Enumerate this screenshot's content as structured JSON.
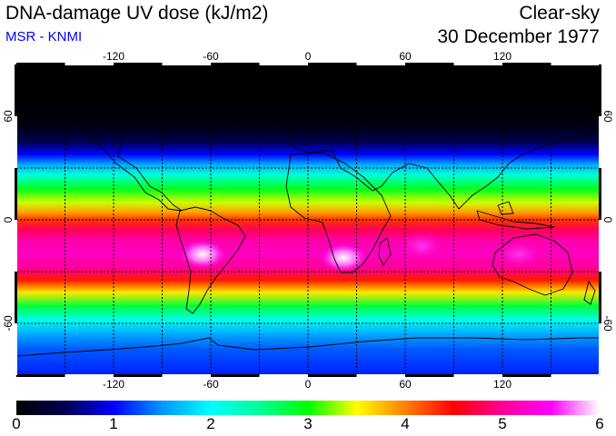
{
  "header": {
    "title": "DNA-damage UV dose (kJ/m2)",
    "subtitle": "MSR - KNMI",
    "condition": "Clear-sky",
    "date": "30 December 1977"
  },
  "colors": {
    "subtitle": "#0000ff",
    "frame": "#000000",
    "grid": "#000000",
    "coastline": "#000000"
  },
  "map": {
    "projection": "equirectangular",
    "lon_range": [
      -180,
      180
    ],
    "lat_range": [
      -90,
      90
    ],
    "lon_ticks": [
      -120,
      -60,
      0,
      60,
      120
    ],
    "lon_tick_labels": [
      "-120",
      "-60",
      "0",
      "60",
      "120"
    ],
    "lat_ticks": [
      60,
      0,
      -60
    ],
    "lat_tick_labels": [
      "60",
      "0",
      "-60"
    ],
    "gridlines": "dotted every 30 degrees"
  },
  "colorbar": {
    "min": 0,
    "max": 6,
    "tick_labels": [
      "0",
      "1",
      "2",
      "3",
      "4",
      "5",
      "6"
    ],
    "colormap": [
      [
        0.0,
        "#000000"
      ],
      [
        0.5,
        "#000050"
      ],
      [
        1.0,
        "#0000ff"
      ],
      [
        1.5,
        "#0096ff"
      ],
      [
        2.0,
        "#00ffff"
      ],
      [
        2.5,
        "#00ff96"
      ],
      [
        3.0,
        "#00ff00"
      ],
      [
        3.5,
        "#ffff00"
      ],
      [
        4.0,
        "#ff8000"
      ],
      [
        4.5,
        "#ff0000"
      ],
      [
        5.0,
        "#ff0096"
      ],
      [
        5.5,
        "#ff00ff"
      ],
      [
        6.0,
        "#ffffff"
      ]
    ]
  },
  "field_bands": [
    {
      "lat": 90,
      "dose": 0.0
    },
    {
      "lat": 70,
      "dose": 0.0
    },
    {
      "lat": 55,
      "dose": 0.1
    },
    {
      "lat": 45,
      "dose": 0.5
    },
    {
      "lat": 38,
      "dose": 1.0
    },
    {
      "lat": 32,
      "dose": 1.6
    },
    {
      "lat": 26,
      "dose": 2.2
    },
    {
      "lat": 18,
      "dose": 2.9
    },
    {
      "lat": 10,
      "dose": 3.4
    },
    {
      "lat": 4,
      "dose": 3.9
    },
    {
      "lat": 0,
      "dose": 4.3
    },
    {
      "lat": -6,
      "dose": 4.8
    },
    {
      "lat": -12,
      "dose": 5.1
    },
    {
      "lat": -20,
      "dose": 5.2
    },
    {
      "lat": -28,
      "dose": 5.0
    },
    {
      "lat": -35,
      "dose": 4.4
    },
    {
      "lat": -42,
      "dose": 3.6
    },
    {
      "lat": -50,
      "dose": 2.8
    },
    {
      "lat": -58,
      "dose": 2.1
    },
    {
      "lat": -66,
      "dose": 1.6
    },
    {
      "lat": -75,
      "dose": 1.3
    },
    {
      "lat": -90,
      "dose": 1.1
    }
  ],
  "hotspots": [
    {
      "name": "south-america-peak",
      "lon": -65,
      "lat": -20,
      "dose": 6.0
    },
    {
      "name": "southern-africa-peak",
      "lon": 22,
      "lat": -22,
      "dose": 6.0
    },
    {
      "name": "australia-peak",
      "lon": 130,
      "lat": -20,
      "dose": 5.6
    },
    {
      "name": "indian-ocean-peak",
      "lon": 70,
      "lat": -15,
      "dose": 5.6
    }
  ]
}
